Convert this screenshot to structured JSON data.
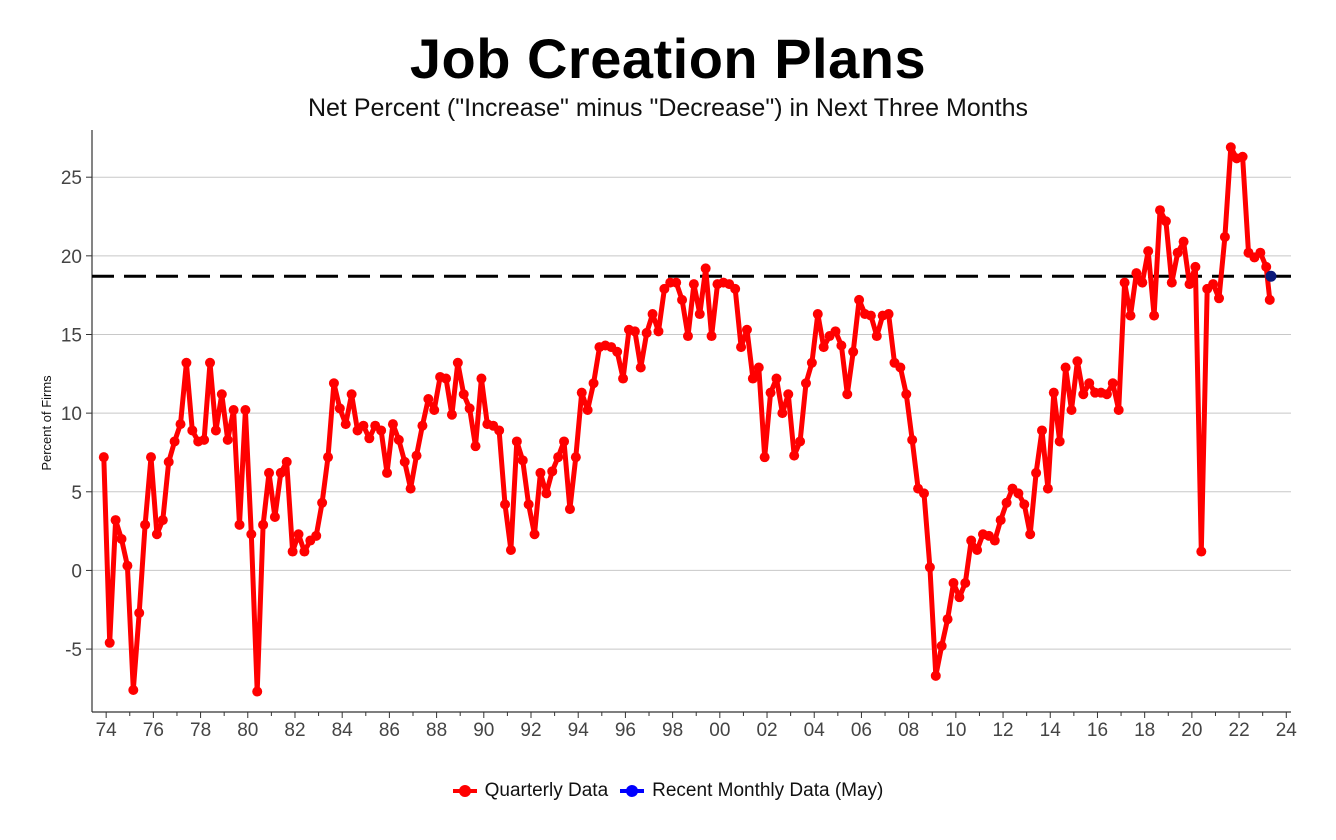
{
  "chart_data": {
    "type": "line",
    "title": "Job Creation Plans",
    "subtitle": "Net Percent (\"Increase\" minus \"Decrease\") in Next Three Months",
    "ylabel": "Percent of Firms",
    "xlabel": "",
    "ylim": [
      -9,
      28
    ],
    "yticks": [
      -5,
      0,
      5,
      10,
      15,
      20,
      25
    ],
    "ytick_labels": [
      "-5",
      "0",
      "5",
      "10",
      "15",
      "20",
      "25"
    ],
    "xlim": [
      1973.4,
      2024.2
    ],
    "xticks": [
      1974,
      1976,
      1978,
      1980,
      1982,
      1984,
      1986,
      1988,
      1990,
      1992,
      1994,
      1996,
      1998,
      2000,
      2002,
      2004,
      2006,
      2008,
      2010,
      2012,
      2014,
      2016,
      2018,
      2020,
      2022,
      2024
    ],
    "xtick_labels": [
      "74",
      "76",
      "78",
      "80",
      "82",
      "84",
      "86",
      "88",
      "90",
      "92",
      "94",
      "96",
      "98",
      "00",
      "02",
      "04",
      "06",
      "08",
      "10",
      "12",
      "14",
      "16",
      "18",
      "20",
      "22",
      "24"
    ],
    "grid": "horizontal",
    "reference_line": {
      "y": 18.7,
      "style": "dashed",
      "color": "#000000"
    },
    "legend_position": "bottom",
    "series": [
      {
        "name": "Quarterly Data",
        "color": "#ff0000",
        "x": [
          1973.9,
          1974.15,
          1974.4,
          1974.65,
          1974.9,
          1975.15,
          1975.4,
          1975.65,
          1975.9,
          1976.15,
          1976.4,
          1976.65,
          1976.9,
          1977.15,
          1977.4,
          1977.65,
          1977.9,
          1978.15,
          1978.4,
          1978.65,
          1978.9,
          1979.15,
          1979.4,
          1979.65,
          1979.9,
          1980.15,
          1980.4,
          1980.65,
          1980.9,
          1981.15,
          1981.4,
          1981.65,
          1981.9,
          1982.15,
          1982.4,
          1982.65,
          1982.9,
          1983.15,
          1983.4,
          1983.65,
          1983.9,
          1984.15,
          1984.4,
          1984.65,
          1984.9,
          1985.15,
          1985.4,
          1985.65,
          1985.9,
          1986.15,
          1986.4,
          1986.65,
          1986.9,
          1987.15,
          1987.4,
          1987.65,
          1987.9,
          1988.15,
          1988.4,
          1988.65,
          1988.9,
          1989.15,
          1989.4,
          1989.65,
          1989.9,
          1990.15,
          1990.4,
          1990.65,
          1990.9,
          1991.15,
          1991.4,
          1991.65,
          1991.9,
          1992.15,
          1992.4,
          1992.65,
          1992.9,
          1993.15,
          1993.4,
          1993.65,
          1993.9,
          1994.15,
          1994.4,
          1994.65,
          1994.9,
          1995.15,
          1995.4,
          1995.65,
          1995.9,
          1996.15,
          1996.4,
          1996.65,
          1996.9,
          1997.15,
          1997.4,
          1997.65,
          1997.9,
          1998.15,
          1998.4,
          1998.65,
          1998.9,
          1999.15,
          1999.4,
          1999.65,
          1999.9,
          2000.15,
          2000.4,
          2000.65,
          2000.9,
          2001.15,
          2001.4,
          2001.65,
          2001.9,
          2002.15,
          2002.4,
          2002.65,
          2002.9,
          2003.15,
          2003.4,
          2003.65,
          2003.9,
          2004.15,
          2004.4,
          2004.65,
          2004.9,
          2005.15,
          2005.4,
          2005.65,
          2005.9,
          2006.15,
          2006.4,
          2006.65,
          2006.9,
          2007.15,
          2007.4,
          2007.65,
          2007.9,
          2008.15,
          2008.4,
          2008.65,
          2008.9,
          2009.15,
          2009.4,
          2009.65,
          2009.9,
          2010.15,
          2010.4,
          2010.65,
          2010.9,
          2011.15,
          2011.4,
          2011.65,
          2011.9,
          2012.15,
          2012.4,
          2012.65,
          2012.9,
          2013.15,
          2013.4,
          2013.65,
          2013.9,
          2014.15,
          2014.4,
          2014.65,
          2014.9,
          2015.15,
          2015.4,
          2015.65,
          2015.9,
          2016.15,
          2016.4,
          2016.65,
          2016.9,
          2017.15,
          2017.4,
          2017.65,
          2017.9,
          2018.15,
          2018.4,
          2018.65,
          2018.9,
          2019.15,
          2019.4,
          2019.65,
          2019.9,
          2020.15,
          2020.4,
          2020.65,
          2020.9,
          2021.15,
          2021.4,
          2021.65,
          2021.9,
          2022.15,
          2022.4,
          2022.65,
          2022.9,
          2023.15,
          2023.3
        ],
        "values": [
          7.2,
          -4.6,
          3.2,
          2.0,
          0.3,
          -7.6,
          -2.7,
          2.9,
          7.2,
          2.3,
          3.2,
          6.9,
          8.2,
          9.3,
          13.2,
          8.9,
          8.2,
          8.3,
          13.2,
          8.9,
          11.2,
          8.3,
          10.2,
          2.9,
          10.2,
          2.3,
          -7.7,
          2.9,
          6.2,
          3.4,
          6.2,
          6.9,
          1.2,
          2.3,
          1.2,
          1.9,
          2.2,
          4.3,
          7.2,
          11.9,
          10.3,
          9.3,
          11.2,
          8.9,
          9.2,
          8.4,
          9.2,
          8.9,
          6.2,
          9.3,
          8.3,
          6.9,
          5.2,
          7.3,
          9.2,
          10.9,
          10.2,
          12.3,
          12.2,
          9.9,
          13.2,
          11.2,
          10.3,
          7.9,
          12.2,
          9.3,
          9.2,
          8.9,
          4.2,
          1.3,
          8.2,
          7.0,
          4.2,
          2.3,
          6.2,
          4.9,
          6.3,
          7.2,
          8.2,
          3.9,
          7.2,
          11.3,
          10.2,
          11.9,
          14.2,
          14.3,
          14.2,
          13.9,
          12.2,
          15.3,
          15.2,
          12.9,
          15.1,
          16.3,
          15.2,
          17.9,
          18.3,
          18.3,
          17.2,
          14.9,
          18.2,
          16.3,
          19.2,
          14.9,
          18.2,
          18.3,
          18.2,
          17.9,
          14.2,
          15.3,
          12.2,
          12.9,
          7.2,
          11.3,
          12.2,
          10.0,
          11.2,
          7.3,
          8.2,
          11.9,
          13.2,
          16.3,
          14.2,
          14.9,
          15.2,
          14.3,
          11.2,
          13.9,
          17.2,
          16.3,
          16.2,
          14.9,
          16.2,
          16.3,
          13.2,
          12.9,
          11.2,
          8.3,
          5.2,
          4.9,
          0.2,
          -6.7,
          -4.8,
          -3.1,
          -0.8,
          -1.7,
          -0.8,
          1.9,
          1.3,
          2.3,
          2.2,
          1.9,
          3.2,
          4.3,
          5.2,
          4.9,
          4.2,
          2.3,
          6.2,
          8.9,
          5.2,
          11.3,
          8.2,
          12.9,
          10.2,
          13.3,
          11.2,
          11.9,
          11.3,
          11.3,
          11.2,
          11.9,
          10.2,
          18.3,
          16.2,
          18.9,
          18.3,
          20.3,
          16.2,
          22.9,
          22.2,
          18.3,
          20.2,
          20.9,
          18.2,
          19.3,
          1.2,
          17.9,
          18.2,
          17.3,
          21.2,
          26.9,
          26.2,
          26.3,
          20.2,
          19.9,
          20.2,
          19.3,
          17.2
        ]
      },
      {
        "name": "Recent Monthly Data (May)",
        "color": "#0000ff",
        "marker_color": "#0b1a7a",
        "x": [
          2023.35
        ],
        "values": [
          18.7
        ]
      }
    ]
  },
  "legend": {
    "items": [
      {
        "label": "Quarterly Data",
        "color": "#ff0000"
      },
      {
        "label": "Recent Monthly Data (May)",
        "color": "#0000ff"
      }
    ]
  }
}
